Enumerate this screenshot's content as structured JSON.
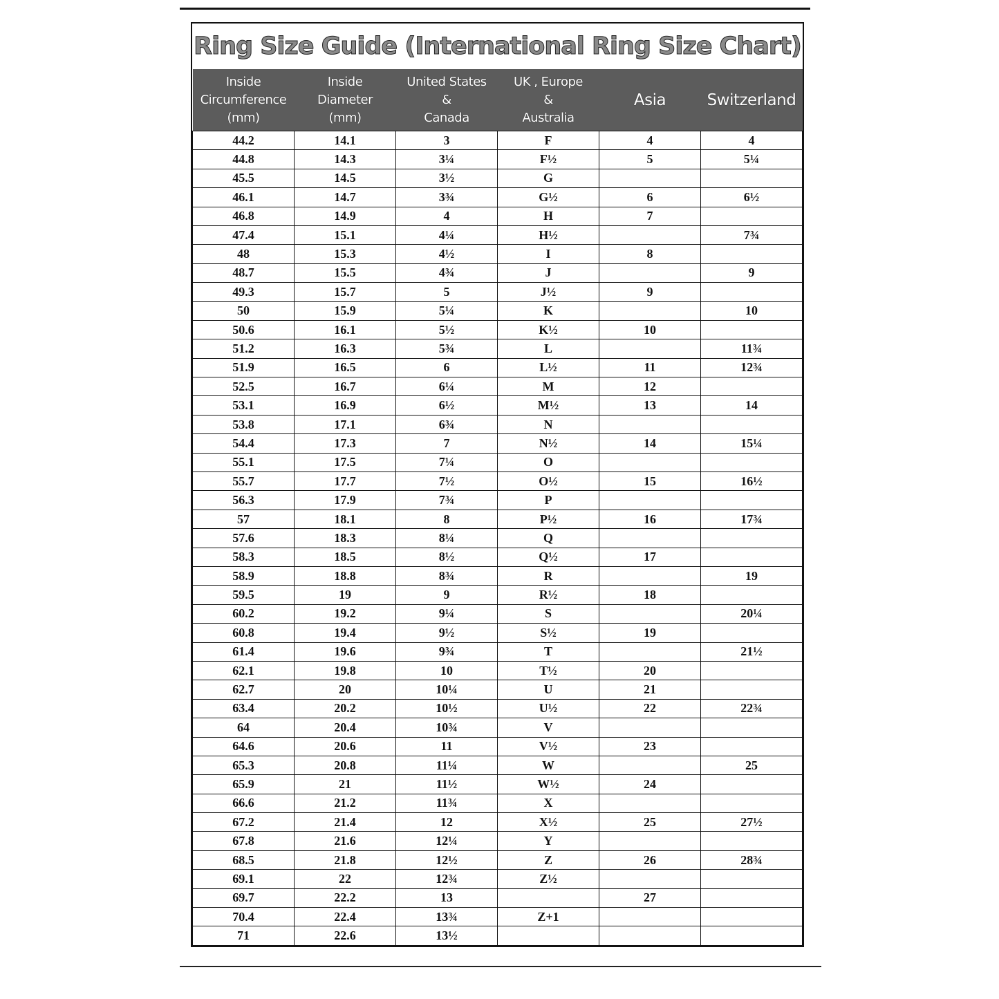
{
  "title": "Ring  Size  Guide (International Ring Size Chart)",
  "columns": [
    [
      "Inside",
      "Circumference",
      "(mm)"
    ],
    [
      "Inside",
      "Diameter",
      "(mm)"
    ],
    [
      "United States",
      "&",
      "Canada"
    ],
    [
      "UK , Europe",
      "&",
      "Australia"
    ],
    [
      "Asia"
    ],
    [
      "Switzerland"
    ]
  ],
  "rows": [
    [
      "44.2",
      "14.1",
      "3",
      "F",
      "4",
      "4"
    ],
    [
      "44.8",
      "14.3",
      "3¼",
      "F½",
      "5",
      "5¼"
    ],
    [
      "45.5",
      "14.5",
      "3½",
      "G",
      "",
      ""
    ],
    [
      "46.1",
      "14.7",
      "3¾",
      "G½",
      "6",
      "6½"
    ],
    [
      "46.8",
      "14.9",
      "4",
      "H",
      "7",
      ""
    ],
    [
      "47.4",
      "15.1",
      "4¼",
      "H½",
      "",
      "7¾"
    ],
    [
      "48",
      "15.3",
      "4½",
      "I",
      "8",
      ""
    ],
    [
      "48.7",
      "15.5",
      "4¾",
      "J",
      "",
      "9"
    ],
    [
      "49.3",
      "15.7",
      "5",
      "J½",
      "9",
      ""
    ],
    [
      "50",
      "15.9",
      "5¼",
      "K",
      "",
      "10"
    ],
    [
      "50.6",
      "16.1",
      "5½",
      "K½",
      "10",
      ""
    ],
    [
      "51.2",
      "16.3",
      "5¾",
      "L",
      "",
      "11¾"
    ],
    [
      "51.9",
      "16.5",
      "6",
      "L½",
      "11",
      "12¾"
    ],
    [
      "52.5",
      "16.7",
      "6¼",
      "M",
      "12",
      ""
    ],
    [
      "53.1",
      "16.9",
      "6½",
      "M½",
      "13",
      "14"
    ],
    [
      "53.8",
      "17.1",
      "6¾",
      "N",
      "",
      ""
    ],
    [
      "54.4",
      "17.3",
      "7",
      "N½",
      "14",
      "15¼"
    ],
    [
      "55.1",
      "17.5",
      "7¼",
      "O",
      "",
      ""
    ],
    [
      "55.7",
      "17.7",
      "7½",
      "O½",
      "15",
      "16½"
    ],
    [
      "56.3",
      "17.9",
      "7¾",
      "P",
      "",
      ""
    ],
    [
      "57",
      "18.1",
      "8",
      "P½",
      "16",
      "17¾"
    ],
    [
      "57.6",
      "18.3",
      "8¼",
      "Q",
      "",
      ""
    ],
    [
      "58.3",
      "18.5",
      "8½",
      "Q½",
      "17",
      ""
    ],
    [
      "58.9",
      "18.8",
      "8¾",
      "R",
      "",
      "19"
    ],
    [
      "59.5",
      "19",
      "9",
      "R½",
      "18",
      ""
    ],
    [
      "60.2",
      "19.2",
      "9¼",
      "S",
      "",
      "20¼"
    ],
    [
      "60.8",
      "19.4",
      "9½",
      "S½",
      "19",
      ""
    ],
    [
      "61.4",
      "19.6",
      "9¾",
      "T",
      "",
      "21½"
    ],
    [
      "62.1",
      "19.8",
      "10",
      "T½",
      "20",
      ""
    ],
    [
      "62.7",
      "20",
      "10¼",
      "U",
      "21",
      ""
    ],
    [
      "63.4",
      "20.2",
      "10½",
      "U½",
      "22",
      "22¾"
    ],
    [
      "64",
      "20.4",
      "10¾",
      "V",
      "",
      ""
    ],
    [
      "64.6",
      "20.6",
      "11",
      "V½",
      "23",
      ""
    ],
    [
      "65.3",
      "20.8",
      "11¼",
      "W",
      "",
      "25"
    ],
    [
      "65.9",
      "21",
      "11½",
      "W½",
      "24",
      ""
    ],
    [
      "66.6",
      "21.2",
      "11¾",
      "X",
      "",
      ""
    ],
    [
      "67.2",
      "21.4",
      "12",
      "X½",
      "25",
      "27½"
    ],
    [
      "67.8",
      "21.6",
      "12¼",
      "Y",
      "",
      ""
    ],
    [
      "68.5",
      "21.8",
      "12½",
      "Z",
      "26",
      "28¾"
    ],
    [
      "69.1",
      "22",
      "12¾",
      "Z½",
      "",
      ""
    ],
    [
      "69.7",
      "22.2",
      "13",
      "",
      "27",
      ""
    ],
    [
      "70.4",
      "22.4",
      "13¾",
      "Z+1",
      "",
      ""
    ],
    [
      "71",
      "22.6",
      "13½",
      "",
      "",
      ""
    ]
  ]
}
